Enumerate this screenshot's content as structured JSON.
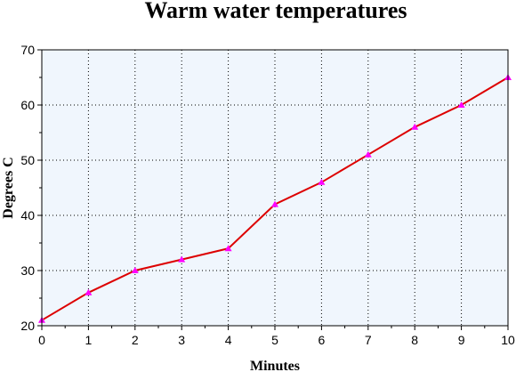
{
  "chart_data": {
    "type": "line",
    "title": "Warm water temperatures",
    "xlabel": "Minutes",
    "ylabel": "Degrees C",
    "x": [
      0,
      1,
      2,
      3,
      4,
      5,
      6,
      7,
      8,
      9,
      10
    ],
    "series": [
      {
        "values": [
          21,
          26,
          30,
          32,
          34,
          42,
          46,
          51,
          56,
          60,
          65
        ]
      }
    ],
    "xlim": [
      0,
      10
    ],
    "ylim": [
      20,
      70
    ],
    "xticks": [
      "0",
      "1",
      "2",
      "3",
      "4",
      "5",
      "6",
      "7",
      "8",
      "9",
      "10"
    ],
    "yticks": [
      "20",
      "30",
      "40",
      "50",
      "60",
      "70"
    ],
    "grid": true,
    "colors": {
      "plot_background": "#f0f6fd",
      "line": "#dd0000",
      "marker": "#ff00ff",
      "grid": "#000000"
    }
  }
}
